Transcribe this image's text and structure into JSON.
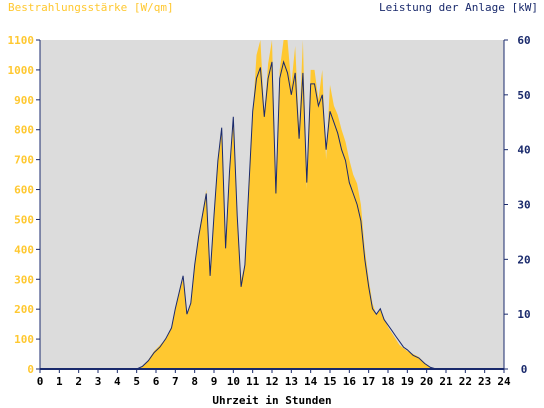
{
  "chart_data": {
    "type": "area",
    "y_left_label": "Bestrahlungsstärke [W/qm]",
    "y_right_label": "Leistung der Anlage [kW]",
    "xlabel": "Uhrzeit in Stunden",
    "xlim": [
      0,
      24
    ],
    "ylim_left": [
      0,
      1100
    ],
    "ylim_right": [
      0,
      60
    ],
    "x_ticks": [
      "0",
      "1",
      "2",
      "3",
      "4",
      "5",
      "6",
      "7",
      "8",
      "9",
      "10",
      "11",
      "12",
      "13",
      "14",
      "15",
      "16",
      "17",
      "18",
      "19",
      "20",
      "21",
      "22",
      "23",
      "24"
    ],
    "y_left_ticks": [
      "0",
      "100",
      "200",
      "300",
      "400",
      "500",
      "600",
      "700",
      "800",
      "900",
      "1000",
      "1100"
    ],
    "y_right_ticks": [
      "0",
      "10",
      "20",
      "30",
      "40",
      "50",
      "60"
    ],
    "colors": {
      "plot_background": "#dcdcdc",
      "irradiance_fill": "#ffc830",
      "power_line": "#1a2a6c",
      "left_axis_text": "#ffc830",
      "right_axis_text": "#1a2a6c",
      "x_axis_text": "#000000"
    },
    "series": [
      {
        "name": "Bestrahlungsstärke",
        "axis": "left",
        "style": "filled-area",
        "x": [
          0,
          5.0,
          5.3,
          5.6,
          5.9,
          6.2,
          6.5,
          6.8,
          7.0,
          7.2,
          7.4,
          7.6,
          7.8,
          8.0,
          8.2,
          8.4,
          8.6,
          8.8,
          9.0,
          9.2,
          9.4,
          9.6,
          9.8,
          10.0,
          10.2,
          10.4,
          10.6,
          10.8,
          11.0,
          11.2,
          11.4,
          11.6,
          11.8,
          12.0,
          12.2,
          12.4,
          12.6,
          12.8,
          13.0,
          13.2,
          13.4,
          13.6,
          13.8,
          14.0,
          14.2,
          14.4,
          14.6,
          14.8,
          15.0,
          15.2,
          15.4,
          15.6,
          15.8,
          16.0,
          16.2,
          16.4,
          16.6,
          16.8,
          17.0,
          17.2,
          17.4,
          17.6,
          17.8,
          18.0,
          18.2,
          18.4,
          18.6,
          18.8,
          19.0,
          19.3,
          19.6,
          19.9,
          20.2,
          20.5,
          24
        ],
        "values": [
          0,
          0,
          10,
          30,
          60,
          80,
          100,
          140,
          200,
          260,
          300,
          180,
          220,
          350,
          450,
          520,
          600,
          300,
          520,
          700,
          800,
          400,
          650,
          820,
          500,
          300,
          350,
          600,
          850,
          1050,
          1100,
          850,
          1020,
          1100,
          600,
          1000,
          1100,
          1100,
          950,
          1080,
          800,
          1100,
          600,
          1000,
          1000,
          900,
          1000,
          700,
          950,
          880,
          850,
          800,
          760,
          700,
          650,
          620,
          550,
          400,
          300,
          220,
          180,
          200,
          170,
          140,
          120,
          100,
          80,
          70,
          60,
          50,
          40,
          20,
          5,
          0,
          0
        ]
      },
      {
        "name": "Leistung",
        "axis": "right",
        "style": "line",
        "x": [
          0,
          5.0,
          5.3,
          5.6,
          5.9,
          6.2,
          6.5,
          6.8,
          7.0,
          7.2,
          7.4,
          7.6,
          7.8,
          8.0,
          8.2,
          8.4,
          8.6,
          8.8,
          9.0,
          9.2,
          9.4,
          9.6,
          9.8,
          10.0,
          10.2,
          10.4,
          10.6,
          10.8,
          11.0,
          11.2,
          11.4,
          11.6,
          11.8,
          12.0,
          12.2,
          12.4,
          12.6,
          12.8,
          13.0,
          13.2,
          13.4,
          13.6,
          13.8,
          14.0,
          14.2,
          14.4,
          14.6,
          14.8,
          15.0,
          15.2,
          15.4,
          15.6,
          15.8,
          16.0,
          16.2,
          16.4,
          16.6,
          16.8,
          17.0,
          17.2,
          17.4,
          17.6,
          17.8,
          18.0,
          18.2,
          18.4,
          18.6,
          18.8,
          19.0,
          19.3,
          19.6,
          19.9,
          20.2,
          20.5,
          24
        ],
        "values": [
          0,
          0,
          0.5,
          1.5,
          3,
          4,
          5.5,
          7.5,
          11,
          14,
          17,
          10,
          12,
          19,
          24,
          28,
          32,
          17,
          28,
          38,
          44,
          22,
          36,
          46,
          28,
          15,
          19,
          33,
          47,
          53,
          55,
          46,
          53,
          56,
          32,
          53,
          56,
          54,
          50,
          54,
          42,
          54,
          34,
          52,
          52,
          48,
          50,
          40,
          47,
          45,
          43,
          40,
          38,
          34,
          32,
          30,
          27,
          20,
          15,
          11,
          10,
          11,
          9,
          8,
          7,
          6,
          5,
          4,
          3.5,
          2.5,
          2,
          1,
          0.3,
          0,
          0
        ]
      }
    ],
    "grid": false,
    "legend": "none"
  }
}
